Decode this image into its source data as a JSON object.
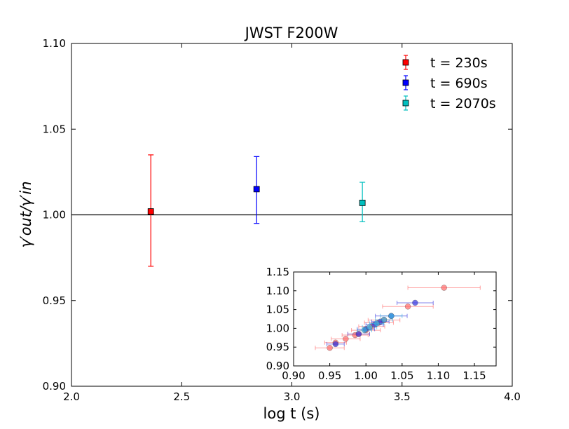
{
  "chart_data": [
    {
      "type": "scatter",
      "title": "JWST F200W",
      "xlabel": "log t (s)",
      "ylabel": "γ′out/γ′in",
      "xlim": [
        2.0,
        4.0
      ],
      "ylim": [
        0.9,
        1.1
      ],
      "xticks": [
        "2.0",
        "2.5",
        "3.0",
        "3.5",
        "4.0"
      ],
      "yticks": [
        "0.90",
        "0.95",
        "1.00",
        "1.05",
        "1.10"
      ],
      "reference_line": 1.0,
      "legend": "top-right",
      "grid": false,
      "series": [
        {
          "name": "t = 230s",
          "color": "#ff0000",
          "marker": "square",
          "x": 2.36,
          "y": 1.002,
          "y_low": 0.97,
          "y_high": 1.035
        },
        {
          "name": "t = 690s",
          "color": "#0000ff",
          "marker": "square",
          "x": 2.84,
          "y": 1.015,
          "y_low": 0.995,
          "y_high": 1.034
        },
        {
          "name": "t = 2070s",
          "color": "#00bfbf",
          "marker": "square",
          "x": 3.32,
          "y": 1.007,
          "y_low": 0.996,
          "y_high": 1.019
        }
      ]
    },
    {
      "type": "scatter",
      "xlim": [
        0.9,
        1.18
      ],
      "ylim": [
        0.9,
        1.15
      ],
      "xticks": [
        "0.90",
        "0.95",
        "1.00",
        "1.05",
        "1.10",
        "1.15"
      ],
      "yticks": [
        "0.90",
        "0.95",
        "1.00",
        "1.05",
        "1.10",
        "1.15"
      ],
      "series": [
        {
          "color": "#ff6666",
          "points": [
            {
              "x": 0.95,
              "y": 0.948,
              "xerr": 0.02
            },
            {
              "x": 0.958,
              "y": 0.962,
              "xerr": 0.015
            },
            {
              "x": 0.972,
              "y": 0.972,
              "xerr": 0.02
            },
            {
              "x": 0.985,
              "y": 0.982,
              "xerr": 0.018
            },
            {
              "x": 0.99,
              "y": 0.985,
              "xerr": 0.015
            },
            {
              "x": 1.0,
              "y": 0.995,
              "xerr": 0.02
            },
            {
              "x": 1.008,
              "y": 1.005,
              "xerr": 0.018
            },
            {
              "x": 1.018,
              "y": 1.015,
              "xerr": 0.02
            },
            {
              "x": 1.025,
              "y": 1.022,
              "xerr": 0.022
            },
            {
              "x": 1.058,
              "y": 1.058,
              "xerr": 0.035
            },
            {
              "x": 1.108,
              "y": 1.108,
              "xerr": 0.05
            }
          ]
        },
        {
          "color": "#3333dd",
          "points": [
            {
              "x": 0.958,
              "y": 0.958,
              "xerr": 0.012
            },
            {
              "x": 0.99,
              "y": 0.985,
              "xerr": 0.015
            },
            {
              "x": 1.0,
              "y": 0.998,
              "xerr": 0.012
            },
            {
              "x": 1.012,
              "y": 1.01,
              "xerr": 0.012
            },
            {
              "x": 1.02,
              "y": 1.018,
              "xerr": 0.012
            },
            {
              "x": 1.035,
              "y": 1.033,
              "xerr": 0.022
            },
            {
              "x": 1.068,
              "y": 1.068,
              "xerr": 0.025
            }
          ]
        },
        {
          "color": "#33aadd",
          "points": [
            {
              "x": 0.998,
              "y": 0.995,
              "xerr": 0.01
            },
            {
              "x": 1.005,
              "y": 1.003,
              "xerr": 0.01
            },
            {
              "x": 1.015,
              "y": 1.013,
              "xerr": 0.01
            },
            {
              "x": 1.025,
              "y": 1.023,
              "xerr": 0.012
            },
            {
              "x": 1.035,
              "y": 1.033,
              "xerr": 0.015
            }
          ]
        }
      ]
    }
  ]
}
